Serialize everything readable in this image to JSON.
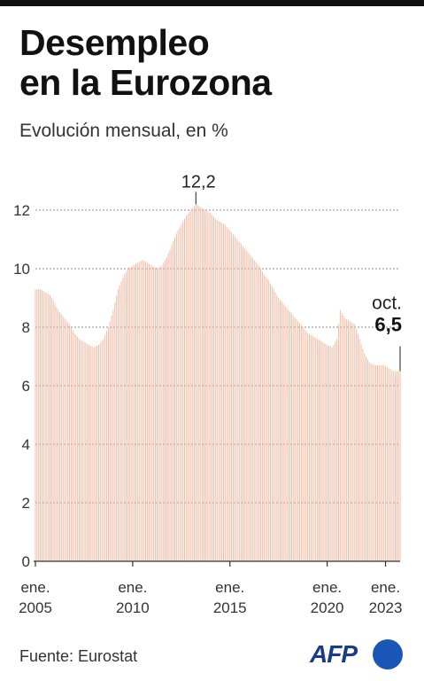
{
  "header": {
    "title_line1": "Desempleo",
    "title_line2": "en la Eurozona",
    "subtitle": "Evolución mensual, en %"
  },
  "chart_data": {
    "type": "area",
    "title": "Desempleo en la Eurozona",
    "subtitle": "Evolución mensual, en %",
    "ylim": [
      0,
      12
    ],
    "yticks": [
      0,
      2,
      4,
      6,
      8,
      10,
      12
    ],
    "ytick_labels": [
      "0",
      "2",
      "4",
      "6",
      "8",
      "10",
      "12"
    ],
    "xtick_labels": [
      {
        "line1": "ene.",
        "line2": "2005",
        "date": "2005-01"
      },
      {
        "line1": "ene.",
        "line2": "2010",
        "date": "2010-01"
      },
      {
        "line1": "ene.",
        "line2": "2015",
        "date": "2015-01"
      },
      {
        "line1": "ene.",
        "line2": "2020",
        "date": "2020-01"
      },
      {
        "line1": "ene.",
        "line2": "2023",
        "date": "2023-01"
      }
    ],
    "grid": true,
    "annotations": [
      {
        "date": "2013-04",
        "text": "12,2"
      },
      {
        "date": "2023-10",
        "text_line1": "oct.",
        "text_line2": "6,5"
      }
    ],
    "series": [
      {
        "color": "#f2b9a1",
        "points": [
          [
            "2005-01",
            9.3
          ],
          [
            "2005-04",
            9.3
          ],
          [
            "2005-07",
            9.2
          ],
          [
            "2005-10",
            9.1
          ],
          [
            "2006-01",
            8.8
          ],
          [
            "2006-04",
            8.5
          ],
          [
            "2006-07",
            8.3
          ],
          [
            "2006-10",
            8.1
          ],
          [
            "2007-01",
            7.8
          ],
          [
            "2007-04",
            7.6
          ],
          [
            "2007-07",
            7.5
          ],
          [
            "2007-10",
            7.4
          ],
          [
            "2008-01",
            7.3
          ],
          [
            "2008-04",
            7.4
          ],
          [
            "2008-07",
            7.6
          ],
          [
            "2008-10",
            8.0
          ],
          [
            "2009-01",
            8.6
          ],
          [
            "2009-04",
            9.3
          ],
          [
            "2009-07",
            9.7
          ],
          [
            "2009-10",
            10.0
          ],
          [
            "2010-01",
            10.1
          ],
          [
            "2010-04",
            10.2
          ],
          [
            "2010-07",
            10.3
          ],
          [
            "2010-10",
            10.2
          ],
          [
            "2011-01",
            10.1
          ],
          [
            "2011-04",
            10.0
          ],
          [
            "2011-07",
            10.1
          ],
          [
            "2011-10",
            10.4
          ],
          [
            "2012-01",
            10.8
          ],
          [
            "2012-04",
            11.2
          ],
          [
            "2012-07",
            11.5
          ],
          [
            "2012-10",
            11.8
          ],
          [
            "2013-01",
            12.0
          ],
          [
            "2013-04",
            12.2
          ],
          [
            "2013-07",
            12.1
          ],
          [
            "2013-10",
            12.0
          ],
          [
            "2014-01",
            11.9
          ],
          [
            "2014-04",
            11.7
          ],
          [
            "2014-07",
            11.6
          ],
          [
            "2014-10",
            11.5
          ],
          [
            "2015-01",
            11.3
          ],
          [
            "2015-04",
            11.1
          ],
          [
            "2015-07",
            10.9
          ],
          [
            "2015-10",
            10.7
          ],
          [
            "2016-01",
            10.5
          ],
          [
            "2016-04",
            10.3
          ],
          [
            "2016-07",
            10.1
          ],
          [
            "2016-10",
            9.8
          ],
          [
            "2017-01",
            9.6
          ],
          [
            "2017-04",
            9.3
          ],
          [
            "2017-07",
            9.0
          ],
          [
            "2017-10",
            8.8
          ],
          [
            "2018-01",
            8.6
          ],
          [
            "2018-04",
            8.4
          ],
          [
            "2018-07",
            8.2
          ],
          [
            "2018-10",
            8.0
          ],
          [
            "2019-01",
            7.8
          ],
          [
            "2019-04",
            7.7
          ],
          [
            "2019-07",
            7.6
          ],
          [
            "2019-10",
            7.5
          ],
          [
            "2020-01",
            7.4
          ],
          [
            "2020-04",
            7.3
          ],
          [
            "2020-07",
            7.6
          ],
          [
            "2020-09",
            8.6
          ],
          [
            "2020-12",
            8.3
          ],
          [
            "2021-03",
            8.2
          ],
          [
            "2021-06",
            8.1
          ],
          [
            "2021-09",
            7.6
          ],
          [
            "2021-12",
            7.1
          ],
          [
            "2022-03",
            6.8
          ],
          [
            "2022-06",
            6.7
          ],
          [
            "2022-09",
            6.7
          ],
          [
            "2022-12",
            6.7
          ],
          [
            "2023-03",
            6.6
          ],
          [
            "2023-06",
            6.5
          ],
          [
            "2023-09",
            6.5
          ],
          [
            "2023-10",
            6.5
          ]
        ]
      }
    ]
  },
  "footer": {
    "source": "Fuente: Eurostat",
    "logo_text": "AFP"
  }
}
